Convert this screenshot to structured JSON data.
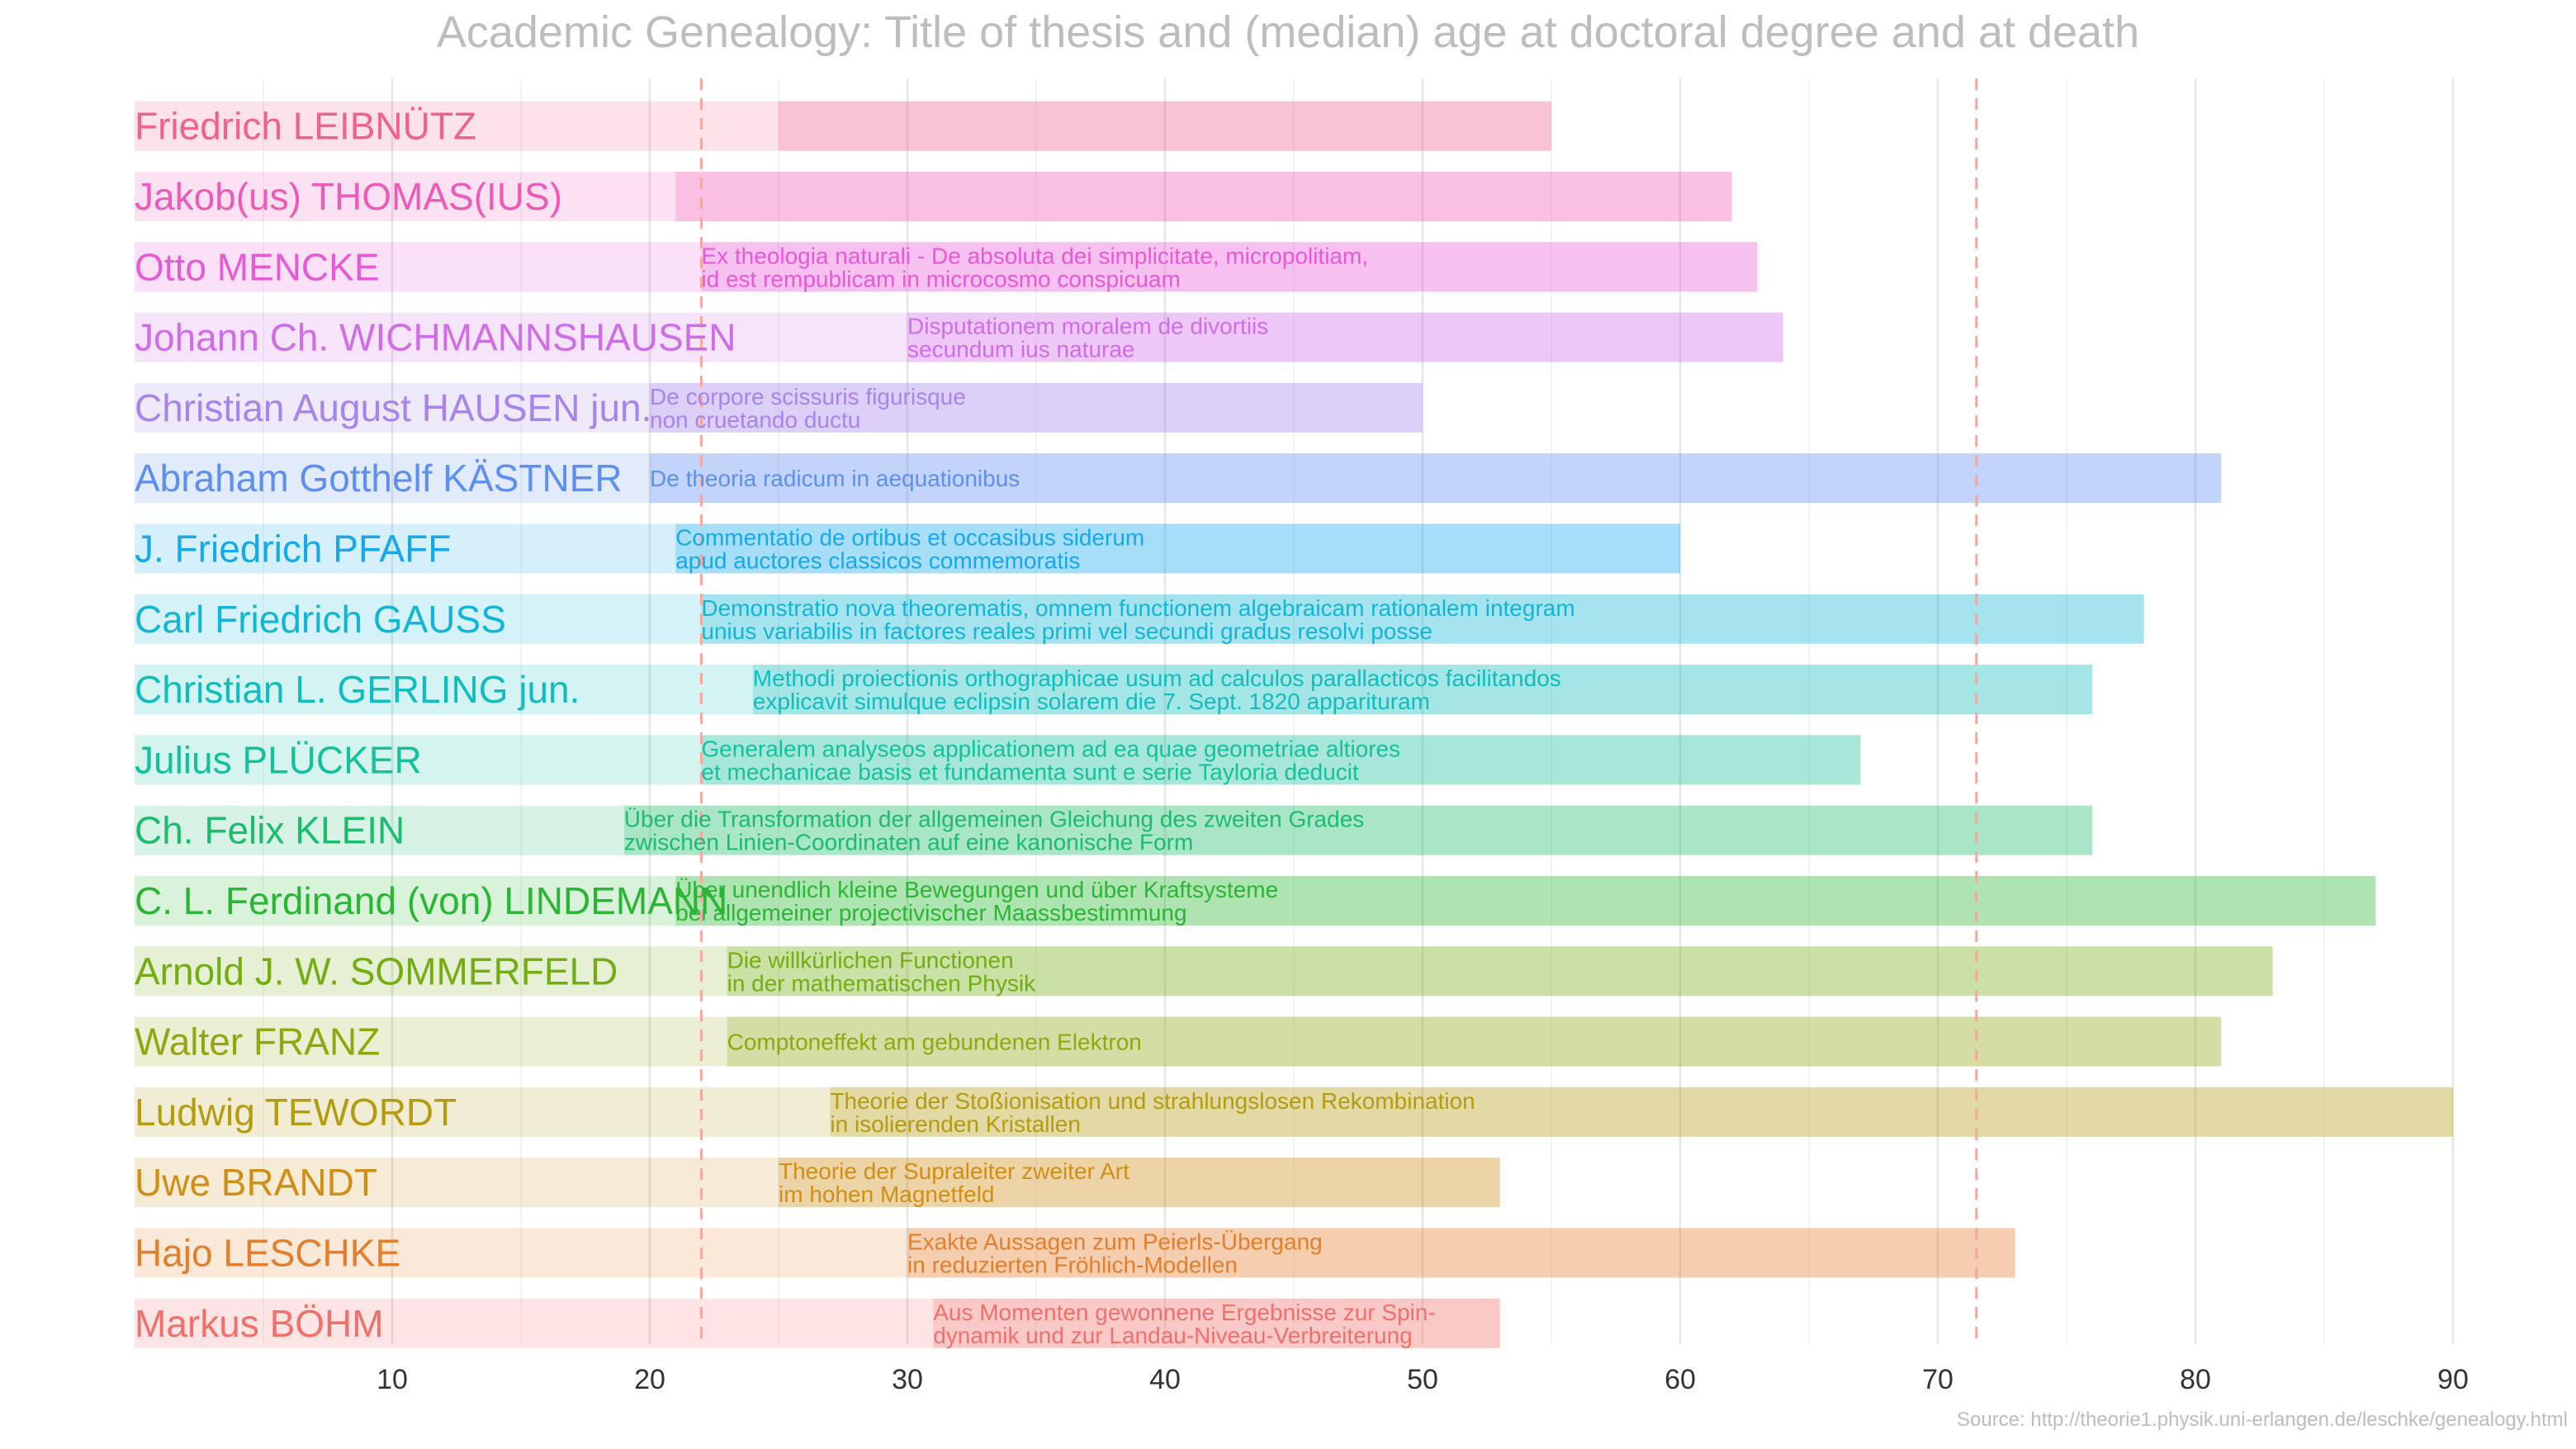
{
  "chart_data": {
    "type": "bar",
    "title": "Academic Genealogy: Title of thesis and (median) age at doctoral degree and at death",
    "source": "Source: http://theorie1.physik.uni-erlangen.de/leschke/genealogy.html",
    "xlim": [
      0,
      90
    ],
    "xticks": [
      "10",
      "20",
      "30",
      "40",
      "50",
      "60",
      "70",
      "80",
      "90"
    ],
    "grid": true,
    "median_age_at_degree": 22,
    "median_age_at_death": 71.5,
    "rows": [
      {
        "name": "Friedrich LEIBNÜTZ",
        "age_doctoral": 25,
        "age_death": 55,
        "thesis": [],
        "color": "#f0628d"
      },
      {
        "name": "Jakob(us) THOMAS(IUS)",
        "age_doctoral": 21,
        "age_death": 62,
        "thesis": [],
        "color": "#ee5ab8"
      },
      {
        "name": "Otto MENCKE",
        "age_doctoral": 22,
        "age_death": 63,
        "thesis": [
          "Ex theologia naturali - De absoluta dei simplicitate, micropolitiam,",
          "id est rempublicam in microcosmo conspicuam"
        ],
        "color": "#e859d4"
      },
      {
        "name": "Johann Ch. WICHMANNSHAUSEN",
        "age_doctoral": 30,
        "age_death": 64,
        "thesis": [
          "Disputationem moralem de divortiis",
          "secundum ius naturae"
        ],
        "color": "#cf6ce8"
      },
      {
        "name": "Christian August HAUSEN jun.",
        "age_doctoral": 20,
        "age_death": 50,
        "thesis": [
          "De corpore scissuris figurisque",
          "non cruetando ductu"
        ],
        "color": "#a684ed"
      },
      {
        "name": "Abraham Gotthelf KÄSTNER",
        "age_doctoral": 20,
        "age_death": 81,
        "thesis": [
          "De theoria radicum in aequationibus"
        ],
        "color": "#5e8fee"
      },
      {
        "name": "J. Friedrich PFAFF",
        "age_doctoral": 21,
        "age_death": 60,
        "thesis": [
          "Commentatio de ortibus et occasibus siderum",
          "apud auctores classicos commemoratis"
        ],
        "color": "#16a8ea"
      },
      {
        "name": "Carl Friedrich GAUSS",
        "age_doctoral": 22,
        "age_death": 78,
        "thesis": [
          "Demonstratio nova theorematis, omnem functionem algebraicam rationalem integram",
          "unius variabilis in factores reales primi vel secundi gradus resolvi posse"
        ],
        "color": "#13b5d6"
      },
      {
        "name": "Christian L. GERLING jun.",
        "age_doctoral": 24,
        "age_death": 76,
        "thesis": [
          "Methodi proiectionis orthographicae usum ad calculos parallacticos facilitandos",
          "explicavit simulque eclipsin solarem die 7. Sept. 1820 apparituram"
        ],
        "color": "#10bcbd"
      },
      {
        "name": "Julius PLÜCKER",
        "age_doctoral": 22,
        "age_death": 67,
        "thesis": [
          "Generalem analyseos applicationem ad ea quae geometriae altiores",
          "et mechanicae basis et fundamenta sunt e serie Tayloria deducit"
        ],
        "color": "#15c09c"
      },
      {
        "name": "Ch. Felix KLEIN",
        "age_doctoral": 19,
        "age_death": 76,
        "thesis": [
          "Über die Transformation der allgemeinen Gleichung des zweiten Grades",
          "zwischen Linien-Coordinaten auf eine kanonische Form"
        ],
        "color": "#1dbb6d"
      },
      {
        "name": "C. L. Ferdinand (von) LINDEMANN",
        "age_doctoral": 21,
        "age_death": 87,
        "thesis": [
          "Über unendlich kleine Bewegungen und über Kraftsysteme",
          "bei allgemeiner projectivischer Maassbestimmung"
        ],
        "color": "#2bb534"
      },
      {
        "name": "Arnold J. W. SOMMERFELD",
        "age_doctoral": 23,
        "age_death": 83,
        "thesis": [
          "Die willkürlichen Functionen",
          "in der mathematischen Physik"
        ],
        "color": "#73ad12"
      },
      {
        "name": "Walter FRANZ",
        "age_doctoral": 23,
        "age_death": 81,
        "thesis": [
          "Comptoneffekt am gebundenen Elektron"
        ],
        "color": "#93a60f"
      },
      {
        "name": "Ludwig TEWORDT",
        "age_doctoral": 27,
        "age_death": 90,
        "thesis": [
          "Theorie der Stoßionisation und strahlungslosen Rekombination",
          "in isolierenden Kristallen"
        ],
        "color": "#b39c10"
      },
      {
        "name": "Uwe BRANDT",
        "age_doctoral": 25,
        "age_death": 53,
        "thesis": [
          "Theorie der Supraleiter zweiter Art",
          "im hohen Magnetfeld"
        ],
        "color": "#cf8f16"
      },
      {
        "name": "Hajo LESCHKE",
        "age_doctoral": 30,
        "age_death": 73,
        "thesis": [
          "Exakte Aussagen zum Peierls-Übergang",
          "in reduzierten Fröhlich-Modellen"
        ],
        "color": "#e37e2c"
      },
      {
        "name": "Markus BÖHM",
        "age_doctoral": 31,
        "age_death": 53,
        "thesis": [
          "Aus Momenten gewonnene Ergebnisse zur Spin-",
          "dynamik und zur Landau-Niveau-Verbreiterung"
        ],
        "color": "#f0706c"
      }
    ]
  }
}
